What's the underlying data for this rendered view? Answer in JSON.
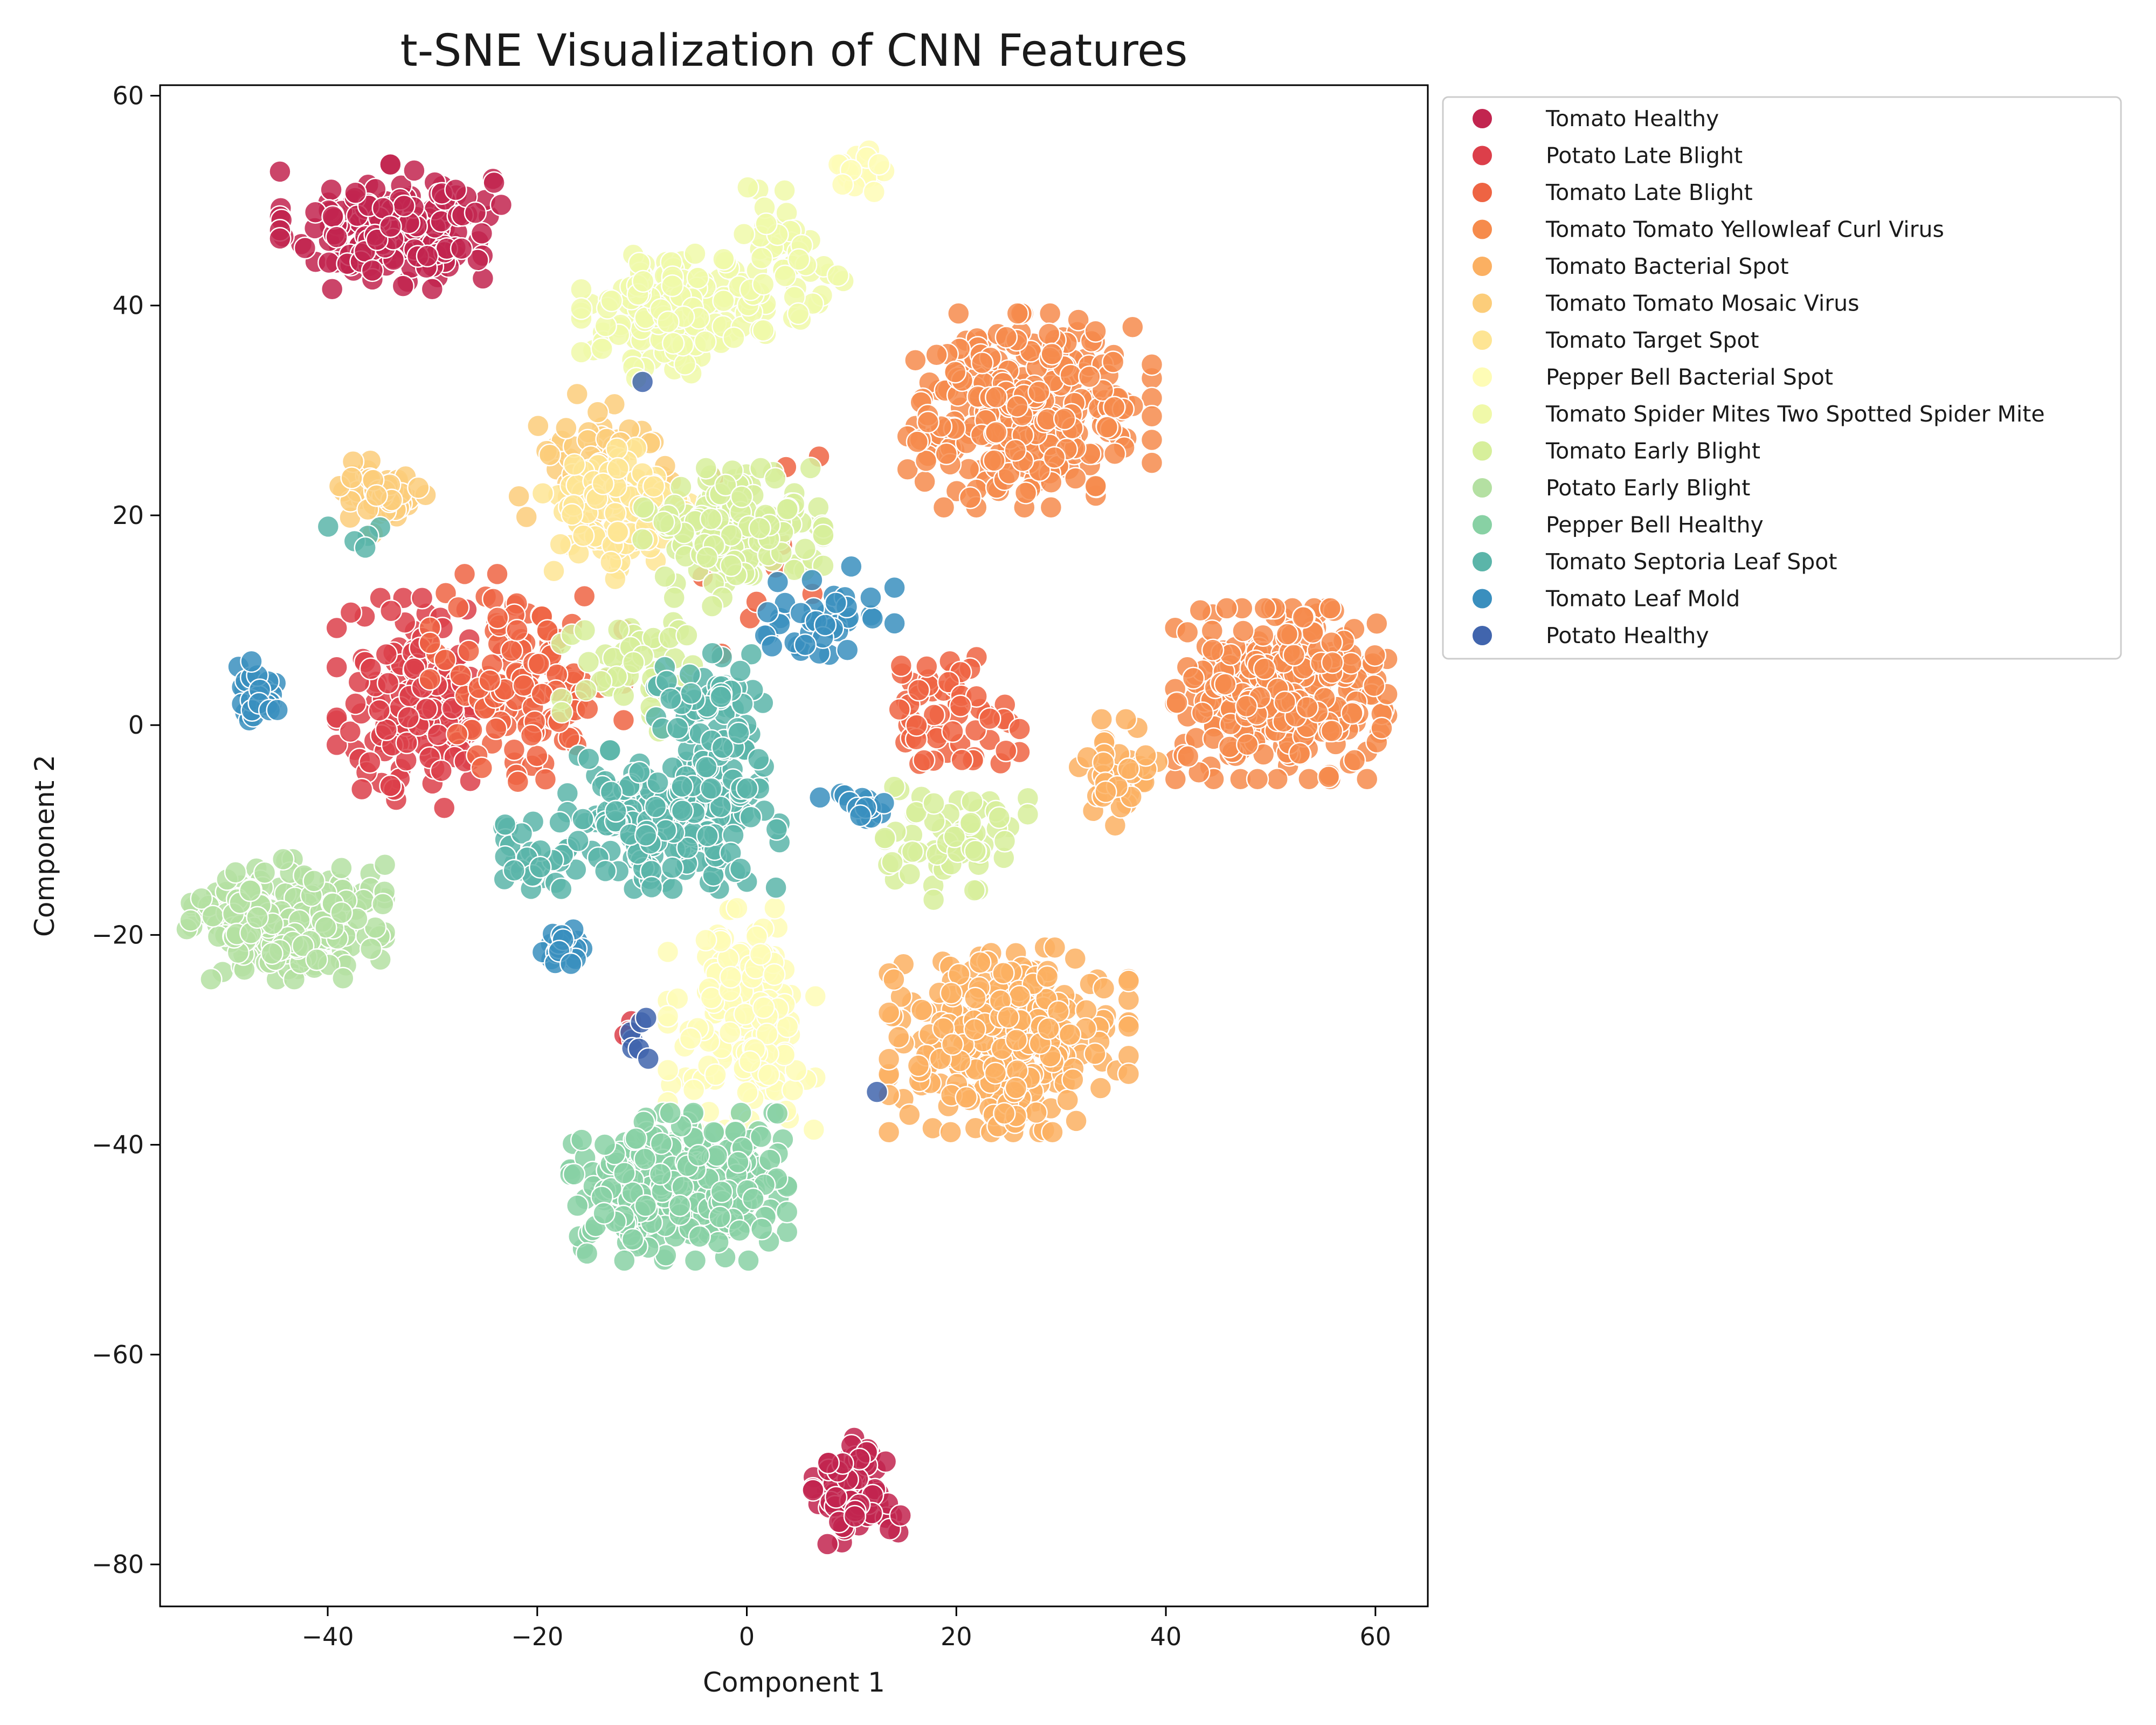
{
  "chart_data": {
    "type": "scatter",
    "title": "t-SNE Visualization of CNN Features",
    "xlabel": "Component 1",
    "ylabel": "Component 2",
    "xlim": [
      -56,
      65
    ],
    "ylim": [
      -84,
      61
    ],
    "xticks": [
      -40,
      -20,
      0,
      20,
      40,
      60
    ],
    "yticks": [
      -80,
      -60,
      -40,
      -20,
      0,
      20,
      40,
      60
    ],
    "xtick_labels": [
      "−40",
      "−20",
      "0",
      "20",
      "40",
      "60"
    ],
    "ytick_labels": [
      "−80",
      "−60",
      "−40",
      "−20",
      "0",
      "20",
      "40",
      "60"
    ],
    "grid": false,
    "legend_position": "outside-right",
    "series": [
      {
        "name": "Tomato Healthy",
        "color": "#c2254f",
        "clusters": [
          {
            "cx": -34,
            "cy": 47.5,
            "sx": 4.8,
            "sy": 2.7,
            "n": 190
          },
          {
            "cx": 10.5,
            "cy": -73,
            "sx": 1.9,
            "sy": 2.3,
            "n": 85
          }
        ]
      },
      {
        "name": "Potato  Late Blight",
        "color": "#dc3f4a",
        "clusters": [
          {
            "cx": -31,
            "cy": 2,
            "sx": 3.7,
            "sy": 4.6,
            "n": 170
          },
          {
            "cx": -11,
            "cy": -29.5,
            "sx": 1.0,
            "sy": 0.7,
            "n": 4
          }
        ]
      },
      {
        "name": "Tomato Late Blight",
        "color": "#ee6443",
        "clusters": [
          {
            "cx": -21,
            "cy": 4.5,
            "sx": 4.2,
            "sy": 4.5,
            "n": 130
          },
          {
            "cx": 19,
            "cy": 1.5,
            "sx": 3.3,
            "sy": 2.6,
            "n": 60
          },
          {
            "cx": 2,
            "cy": 13.5,
            "sx": 3.5,
            "sy": 5.5,
            "n": 12
          }
        ]
      },
      {
        "name": "Tomato Tomato Yellowleaf Curl Virus",
        "color": "#f68b4c",
        "clusters": [
          {
            "cx": 27,
            "cy": 30,
            "sx": 5.3,
            "sy": 4.2,
            "n": 330
          },
          {
            "cx": 51,
            "cy": 3,
            "sx": 4.6,
            "sy": 3.7,
            "n": 360
          }
        ]
      },
      {
        "name": "Tomato Bacterial Spot",
        "color": "#fbb062",
        "clusters": [
          {
            "cx": 25,
            "cy": -30,
            "sx": 5.2,
            "sy": 4.0,
            "n": 330
          },
          {
            "cx": 35,
            "cy": -4.5,
            "sx": 1.9,
            "sy": 2.3,
            "n": 40
          }
        ]
      },
      {
        "name": "Tomato Tomato Mosaic Virus",
        "color": "#fccd7a",
        "clusters": [
          {
            "cx": -35,
            "cy": 22,
            "sx": 2.1,
            "sy": 1.7,
            "n": 55
          },
          {
            "cx": -14.5,
            "cy": 25,
            "sx": 3.3,
            "sy": 3.2,
            "n": 70
          }
        ]
      },
      {
        "name": "Tomato Target Spot",
        "color": "#fee594",
        "clusters": [
          {
            "cx": -12,
            "cy": 20,
            "sx": 3.4,
            "sy": 3.0,
            "n": 110
          }
        ]
      },
      {
        "name": "Pepper Bell  Bacterial Spot",
        "color": "#fefcb6",
        "clusters": [
          {
            "cx": -0.5,
            "cy": -28,
            "sx": 3.2,
            "sy": 4.8,
            "n": 160
          },
          {
            "cx": 10.5,
            "cy": 52.5,
            "sx": 1.3,
            "sy": 1.1,
            "n": 20
          }
        ]
      },
      {
        "name": "Tomato Spider Mites Two Spotted Spider Mite",
        "color": "#f0f9a9",
        "clusters": [
          {
            "cx": -7,
            "cy": 39,
            "sx": 4.0,
            "sy": 2.7,
            "n": 160
          },
          {
            "cx": 3.5,
            "cy": 44,
            "sx": 2.6,
            "sy": 3.3,
            "n": 60
          }
        ]
      },
      {
        "name": "Tomato Early Blight",
        "color": "#d7ef9b",
        "clusters": [
          {
            "cx": -1.5,
            "cy": 19,
            "sx": 4.0,
            "sy": 2.5,
            "n": 160
          },
          {
            "cx": 20,
            "cy": -11,
            "sx": 3.1,
            "sy": 2.6,
            "n": 65
          },
          {
            "cx": -10,
            "cy": 6,
            "sx": 3.5,
            "sy": 3.0,
            "n": 50
          }
        ]
      },
      {
        "name": "Potato  Early Blight",
        "color": "#b4e0a2",
        "clusters": [
          {
            "cx": -44,
            "cy": -18.5,
            "sx": 4.3,
            "sy": 2.6,
            "n": 230
          }
        ]
      },
      {
        "name": "Pepper Bell  Healthy",
        "color": "#88d1a4",
        "clusters": [
          {
            "cx": -6.5,
            "cy": -44,
            "sx": 4.7,
            "sy": 3.2,
            "n": 330
          }
        ]
      },
      {
        "name": "Tomato Septoria Leaf Spot",
        "color": "#5bb5a9",
        "clusters": [
          {
            "cx": -7,
            "cy": -9,
            "sx": 4.6,
            "sy": 3.0,
            "n": 220
          },
          {
            "cx": -2.5,
            "cy": 1,
            "sx": 2.8,
            "sy": 3.2,
            "n": 70
          },
          {
            "cx": -21,
            "cy": -12.5,
            "sx": 2.6,
            "sy": 1.5,
            "n": 30
          },
          {
            "cx": -36,
            "cy": 17,
            "sx": 1.8,
            "sy": 1.4,
            "n": 5
          }
        ]
      },
      {
        "name": "Tomato Leaf Mold",
        "color": "#3a8fbe",
        "clusters": [
          {
            "cx": 7.5,
            "cy": 10.5,
            "sx": 3.0,
            "sy": 2.1,
            "n": 40
          },
          {
            "cx": -47,
            "cy": 3,
            "sx": 1.0,
            "sy": 1.4,
            "n": 30
          },
          {
            "cx": -17.5,
            "cy": -21,
            "sx": 0.9,
            "sy": 0.9,
            "n": 25
          },
          {
            "cx": 10.5,
            "cy": -7.5,
            "sx": 1.6,
            "sy": 0.7,
            "n": 14
          }
        ]
      },
      {
        "name": "Potato  Healthy",
        "color": "#4165ad",
        "clusters": [
          {
            "cx": -11,
            "cy": -30,
            "sx": 1.2,
            "sy": 1.2,
            "n": 7
          },
          {
            "cx": -10,
            "cy": 32.5,
            "sx": 0.2,
            "sy": 0.2,
            "n": 1
          },
          {
            "cx": 12.5,
            "cy": -35,
            "sx": 0.2,
            "sy": 0.2,
            "n": 1
          }
        ]
      }
    ]
  }
}
